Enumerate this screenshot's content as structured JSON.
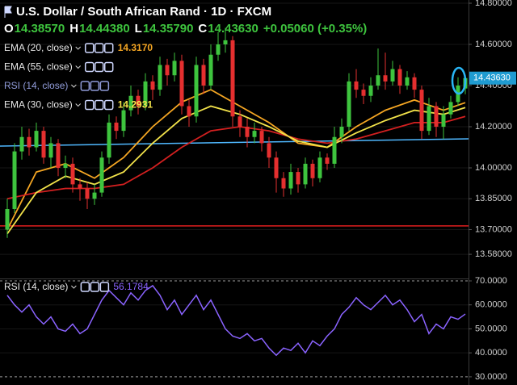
{
  "chart_data": [
    {
      "type": "candlestick",
      "header": {
        "symbol": "U.S. Dollar / South African Rand · 1D · FXCM",
        "ohlc": [
          [
            "O",
            "14.38570"
          ],
          [
            "H",
            "14.44380"
          ],
          [
            "L",
            "14.35790"
          ],
          [
            "C",
            "14.43630"
          ]
        ],
        "change": "+0.05060 (+0.35%)"
      },
      "up_color": "#3ec43e",
      "down_color": "#e52f2f",
      "open": [
        13.7,
        13.8,
        14.08,
        14.15,
        14.1,
        14.18,
        14.05,
        14.12,
        14.0,
        14.02,
        13.92,
        13.9,
        13.85,
        13.88,
        14.05,
        14.22,
        14.18,
        14.28,
        14.35,
        14.3,
        14.42,
        14.38,
        14.5,
        14.45,
        14.52,
        14.3,
        14.25,
        14.5,
        14.4,
        14.55,
        14.6,
        14.62,
        14.25,
        14.2,
        14.15,
        14.18,
        14.12,
        14.05,
        13.95,
        13.9,
        13.98,
        13.92,
        14.02,
        13.95,
        14.05,
        14.02,
        14.15,
        14.2,
        14.42,
        14.38,
        14.35,
        14.4,
        14.45,
        14.42,
        14.48,
        14.4,
        14.44,
        14.38,
        14.18,
        14.3,
        14.2,
        14.26,
        14.32,
        14.3857
      ],
      "high": [
        13.85,
        14.12,
        14.2,
        14.19,
        14.22,
        14.2,
        14.15,
        14.14,
        14.06,
        14.05,
        13.95,
        13.93,
        13.92,
        14.08,
        14.26,
        14.25,
        14.32,
        14.4,
        14.38,
        14.46,
        14.45,
        14.54,
        14.53,
        14.56,
        14.55,
        14.33,
        14.54,
        14.53,
        14.6,
        14.66,
        14.68,
        14.64,
        14.28,
        14.24,
        14.22,
        14.2,
        14.15,
        14.08,
        13.98,
        14.02,
        14.0,
        14.05,
        14.04,
        14.08,
        14.07,
        14.2,
        14.24,
        14.46,
        14.48,
        14.41,
        14.44,
        14.58,
        14.56,
        14.52,
        14.5,
        14.47,
        14.46,
        14.4,
        14.34,
        14.32,
        14.3,
        14.35,
        14.44,
        14.4438
      ],
      "low": [
        13.66,
        13.78,
        14.04,
        14.06,
        14.08,
        14.02,
        14.0,
        13.96,
        13.95,
        13.88,
        13.84,
        13.8,
        13.82,
        13.86,
        14.02,
        14.14,
        14.15,
        14.25,
        14.26,
        14.28,
        14.33,
        14.35,
        14.4,
        14.42,
        14.26,
        14.2,
        14.22,
        14.36,
        14.38,
        14.52,
        14.56,
        14.2,
        14.15,
        14.1,
        14.12,
        14.08,
        14.0,
        13.88,
        13.86,
        13.87,
        13.88,
        13.9,
        13.91,
        13.93,
        13.99,
        14.0,
        14.12,
        14.18,
        14.34,
        14.31,
        14.32,
        14.38,
        14.38,
        14.4,
        14.36,
        14.38,
        14.34,
        14.14,
        14.16,
        14.15,
        14.14,
        14.24,
        14.3,
        14.3579
      ],
      "close": [
        13.8,
        14.08,
        14.15,
        14.1,
        14.18,
        14.05,
        14.12,
        14.0,
        14.02,
        13.92,
        13.9,
        13.85,
        13.88,
        14.05,
        14.22,
        14.18,
        14.28,
        14.35,
        14.3,
        14.42,
        14.38,
        14.5,
        14.45,
        14.52,
        14.3,
        14.25,
        14.5,
        14.4,
        14.55,
        14.6,
        14.62,
        14.25,
        14.2,
        14.15,
        14.18,
        14.12,
        14.05,
        13.95,
        13.9,
        13.98,
        13.92,
        14.02,
        13.95,
        14.05,
        14.02,
        14.15,
        14.2,
        14.42,
        14.38,
        14.35,
        14.4,
        14.45,
        14.42,
        14.48,
        14.4,
        14.44,
        14.38,
        14.18,
        14.3,
        14.2,
        14.26,
        14.32,
        14.4,
        14.4363
      ],
      "indicators": [
        {
          "name": "EMA (20, close)",
          "value": "14.3170",
          "color": "#f5a623",
          "x": [
            0,
            4,
            8,
            12,
            16,
            20,
            24,
            28,
            32,
            36,
            40,
            44,
            48,
            52,
            56,
            60,
            63
          ],
          "values": [
            13.7,
            13.98,
            14.02,
            13.95,
            14.05,
            14.2,
            14.32,
            14.38,
            14.3,
            14.22,
            14.12,
            14.1,
            14.2,
            14.28,
            14.33,
            14.28,
            14.317
          ]
        },
        {
          "name": "EMA (55, close)",
          "color": "#d32020",
          "x": [
            0,
            4,
            8,
            12,
            16,
            20,
            24,
            28,
            32,
            36,
            40,
            44,
            48,
            52,
            56,
            60,
            63
          ],
          "values": [
            13.85,
            13.88,
            13.9,
            13.9,
            13.92,
            14.0,
            14.1,
            14.18,
            14.2,
            14.18,
            14.14,
            14.12,
            14.14,
            14.18,
            14.22,
            14.22,
            14.25
          ]
        },
        {
          "name": "RSI (14, close)"
        },
        {
          "name": "EMA (30, close)",
          "value": "14.2931",
          "color": "#f2e24a",
          "x": [
            0,
            4,
            8,
            12,
            16,
            20,
            24,
            28,
            32,
            36,
            40,
            44,
            48,
            52,
            56,
            60,
            63
          ],
          "values": [
            13.68,
            13.88,
            13.96,
            13.92,
            13.98,
            14.12,
            14.24,
            14.3,
            14.26,
            14.2,
            14.13,
            14.1,
            14.17,
            14.23,
            14.28,
            14.26,
            14.2931
          ]
        }
      ],
      "lines": [
        {
          "color": "#4fb8ff",
          "values": [
            14.106,
            14.141
          ]
        },
        {
          "color": "#e01e1e",
          "values": [
            13.718,
            13.718
          ]
        }
      ],
      "last_price_label": "14.43630",
      "ylim": [
        13.4627,
        14.8157
      ],
      "yticks": [
        {
          "value": 14.8,
          "label": "14.80000"
        },
        {
          "value": 14.6,
          "label": "14.60000"
        },
        {
          "value": 14.4,
          "label": "14.40000"
        },
        {
          "value": 14.2,
          "label": "14.20000"
        },
        {
          "value": 14.0,
          "label": "14.00000"
        },
        {
          "value": 13.85,
          "label": "13.85000"
        },
        {
          "value": 13.7,
          "label": "13.70000"
        },
        {
          "value": 13.58,
          "label": "13.58000"
        }
      ]
    },
    {
      "type": "line",
      "name": "RSI (14, close)",
      "value_label": "56.1784",
      "color": "#8a63ff",
      "values": [
        64,
        60,
        57,
        60,
        55,
        52,
        55,
        50,
        49,
        52,
        48,
        50,
        56,
        62,
        66,
        63,
        60,
        65,
        62,
        66,
        68,
        64,
        58,
        62,
        56,
        60,
        64,
        58,
        62,
        56,
        50,
        47,
        46,
        48,
        45,
        46,
        42,
        39,
        42,
        41,
        44,
        40,
        45,
        43,
        47,
        50,
        56,
        59,
        63,
        60,
        58,
        61,
        64,
        60,
        62,
        58,
        53,
        56,
        48,
        52,
        50,
        55,
        54,
        56.1784
      ],
      "ylim": [
        26.6,
        70.67
      ],
      "yticks": [
        {
          "value": 70,
          "label": "70.0000"
        },
        {
          "value": 60,
          "label": "60.0000"
        },
        {
          "value": 50,
          "label": "50.0000"
        },
        {
          "value": 40,
          "label": "40.0000"
        },
        {
          "value": 30,
          "label": "30.0000"
        }
      ]
    }
  ]
}
